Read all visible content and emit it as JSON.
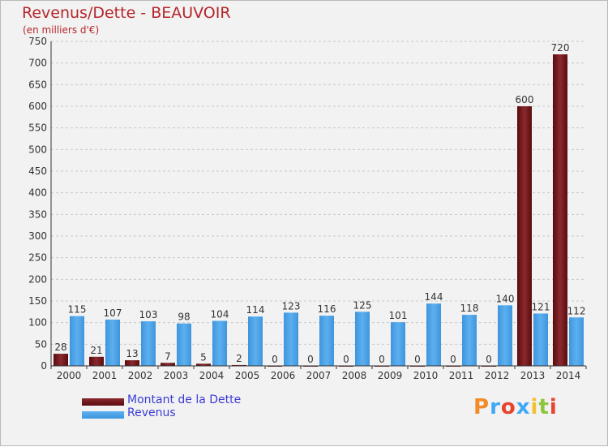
{
  "title": "Revenus/Dette - BEAUVOIR",
  "subtitle": "(en milliers d'€)",
  "brand": "Proxiti",
  "colors": {
    "debt": "#7a1b1f",
    "revenue": "#4da3e8",
    "title": "#b5262b",
    "legend": "#3b3bd6"
  },
  "legend": {
    "debt": "Montant de la Dette",
    "revenue": "Revenus"
  },
  "chart_data": {
    "type": "bar",
    "title": "Revenus/Dette - BEAUVOIR",
    "ylabel": "(en milliers d'€)",
    "ylim": [
      0,
      750
    ],
    "ytick_step": 50,
    "grid": true,
    "categories": [
      "2000",
      "2001",
      "2002",
      "2003",
      "2004",
      "2005",
      "2006",
      "2007",
      "2008",
      "2009",
      "2010",
      "2011",
      "2012",
      "2013",
      "2014"
    ],
    "series": [
      {
        "name": "Montant de la Dette",
        "values": [
          28,
          21,
          13,
          7,
          5,
          2,
          0,
          0,
          0,
          0,
          0,
          0,
          0,
          600,
          720
        ]
      },
      {
        "name": "Revenus",
        "values": [
          115,
          107,
          103,
          98,
          104,
          114,
          123,
          116,
          125,
          101,
          144,
          118,
          140,
          121,
          112
        ]
      }
    ]
  }
}
